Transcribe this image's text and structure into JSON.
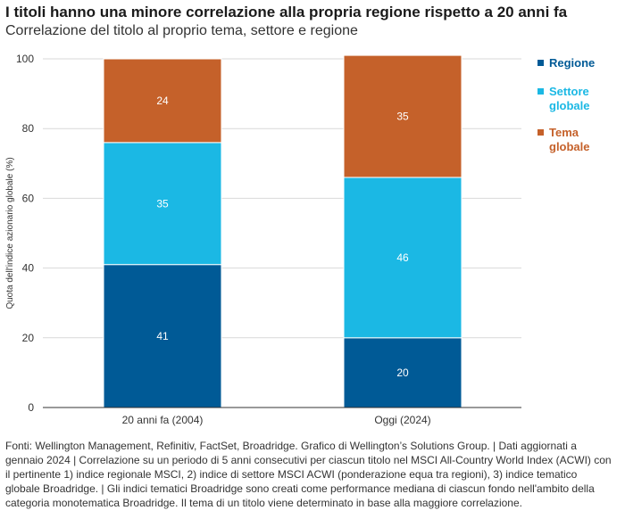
{
  "header": {
    "title": "I titoli hanno una minore correlazione alla propria regione rispetto a 20 anni fa",
    "subtitle": "Correlazione del titolo al proprio tema, settore e regione"
  },
  "chart_data": {
    "type": "bar",
    "stacked": true,
    "categories": [
      "20 anni fa (2004)",
      "Oggi (2024)"
    ],
    "ylabel": "Quota dell'indice azionario globale (%)",
    "ylim": [
      0,
      100
    ],
    "yticks": [
      0,
      20,
      40,
      60,
      80,
      100
    ],
    "grid": true,
    "legend_position": "right",
    "series": [
      {
        "name": "Regione",
        "values": [
          41,
          20
        ],
        "color": "#005a96"
      },
      {
        "name": "Settore globale",
        "values": [
          35,
          46
        ],
        "color": "#1bb8e4"
      },
      {
        "name": "Tema globale",
        "values": [
          24,
          35
        ],
        "color": "#c5612a"
      }
    ]
  },
  "legend": [
    {
      "lines": [
        "Regione"
      ],
      "color": "#005a96"
    },
    {
      "lines": [
        "Settore",
        "globale"
      ],
      "color": "#1bb8e4"
    },
    {
      "lines": [
        "Tema",
        "globale"
      ],
      "color": "#c5612a"
    }
  ],
  "footnote": "Fonti: Wellington Management, Refinitiv, FactSet, Broadridge. Grafico di Wellington’s Solutions Group.  |  Dati aggiornati a gennaio 2024  |  Correlazione su un periodo di 5 anni consecutivi per ciascun titolo nel MSCI All-Country World Index (ACWI) con il pertinente 1) indice regionale MSCI, 2) indice di settore MSCI ACWI (ponderazione equa tra regioni), 3) indice tematico globale Broadridge.  |  Gli indici tematici Broadridge sono creati come performance mediana di ciascun fondo nell'ambito della categoria monotematica Broadridge. Il tema di un titolo viene determinato in base alla maggiore correlazione."
}
